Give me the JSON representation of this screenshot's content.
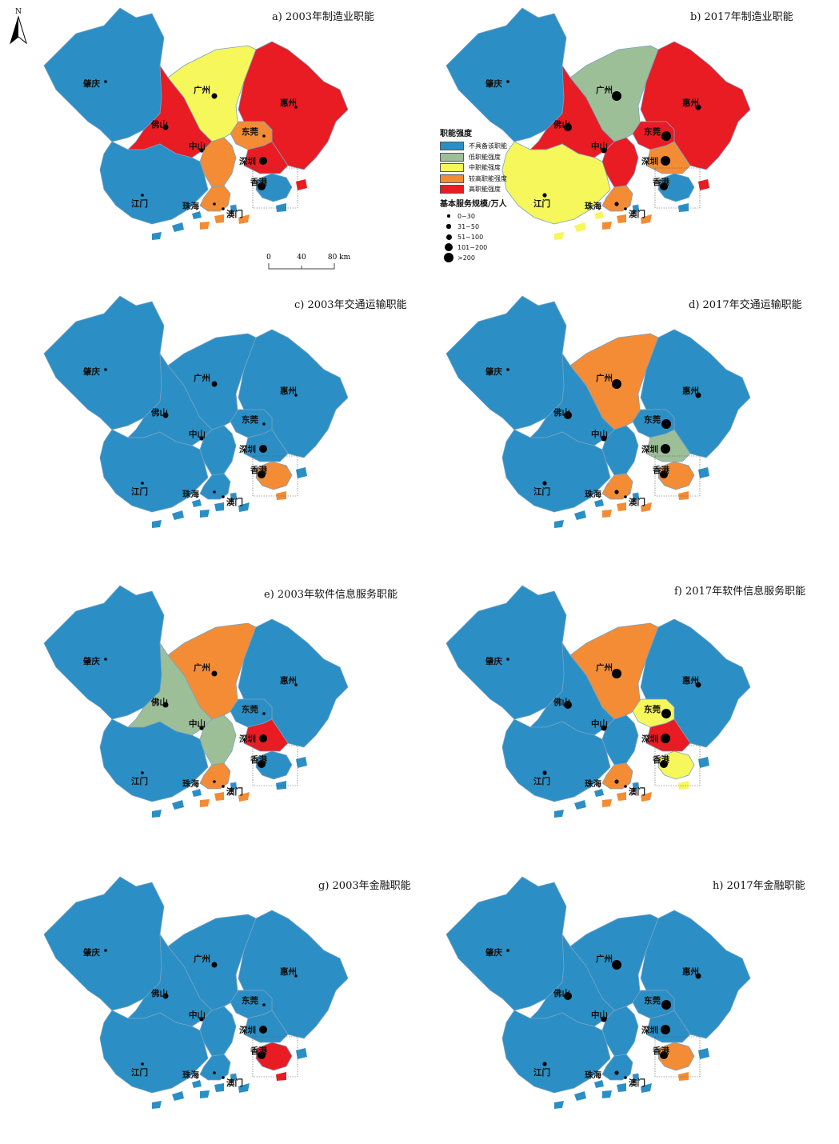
{
  "legend": {
    "title": "职能强度",
    "classes": [
      {
        "label": "不具备该职能",
        "color": "#2b8fc5"
      },
      {
        "label": "低职能强度",
        "color": "#9dbf97"
      },
      {
        "label": "中职能强度",
        "color": "#f6f75b"
      },
      {
        "label": "较高职能强度",
        "color": "#f38c35"
      },
      {
        "label": "高职能强度",
        "color": "#e81c22"
      }
    ],
    "size_title": "基本服务规模/万人",
    "sizes": [
      {
        "label": "0~30",
        "level": 1
      },
      {
        "label": "31~50",
        "level": 2
      },
      {
        "label": "51~100",
        "level": 3
      },
      {
        "label": "101~200",
        "level": 4
      },
      {
        "label": ">200",
        "level": 5
      }
    ]
  },
  "north_label": "N",
  "scale_bar": {
    "ticks": [
      "0",
      "40",
      "80 km"
    ]
  },
  "cities": [
    "zhaoqing",
    "guangzhou",
    "huizhou",
    "foshan",
    "dongguan",
    "shenzhen",
    "zhongshan",
    "jiangmen",
    "zhuhai",
    "macau",
    "hongkong"
  ],
  "city_names": {
    "zhaoqing": "肇庆",
    "guangzhou": "广州",
    "huizhou": "惠州",
    "foshan": "佛山",
    "dongguan": "东莞",
    "shenzhen": "深圳",
    "zhongshan": "中山",
    "jiangmen": "江门",
    "zhuhai": "珠海",
    "macau": "澳门",
    "hongkong": "香港"
  },
  "panels": [
    {
      "title": "a) 2003年制造业职能",
      "classes": {
        "zhaoqing": 0,
        "guangzhou": 2,
        "huizhou": 4,
        "foshan": 4,
        "dongguan": 3,
        "shenzhen": 4,
        "zhongshan": 3,
        "jiangmen": 0,
        "zhuhai": 3,
        "macau": 0,
        "hongkong": 0
      },
      "sizes": {
        "zhaoqing": 1,
        "guangzhou": 3,
        "huizhou": 1,
        "foshan": 3,
        "dongguan": 1,
        "shenzhen": 4,
        "zhongshan": 2,
        "jiangmen": 1,
        "zhuhai": 1,
        "macau": 1,
        "hongkong": 4
      }
    },
    {
      "title": "b) 2017年制造业职能",
      "classes": {
        "zhaoqing": 0,
        "guangzhou": 1,
        "huizhou": 4,
        "foshan": 4,
        "dongguan": 4,
        "shenzhen": 3,
        "zhongshan": 4,
        "jiangmen": 2,
        "zhuhai": 3,
        "macau": 0,
        "hongkong": 0
      },
      "sizes": {
        "zhaoqing": 1,
        "guangzhou": 5,
        "huizhou": 3,
        "foshan": 4,
        "dongguan": 5,
        "shenzhen": 5,
        "zhongshan": 3,
        "jiangmen": 2,
        "zhuhai": 2,
        "macau": 1,
        "hongkong": 4
      }
    },
    {
      "title": "c) 2003年交通运输职能",
      "classes": {
        "zhaoqing": 0,
        "guangzhou": 0,
        "huizhou": 0,
        "foshan": 0,
        "dongguan": 0,
        "shenzhen": 0,
        "zhongshan": 0,
        "jiangmen": 0,
        "zhuhai": 0,
        "macau": 0,
        "hongkong": 3
      },
      "sizes": {
        "zhaoqing": 1,
        "guangzhou": 3,
        "huizhou": 1,
        "foshan": 3,
        "dongguan": 1,
        "shenzhen": 4,
        "zhongshan": 2,
        "jiangmen": 1,
        "zhuhai": 1,
        "macau": 1,
        "hongkong": 4
      }
    },
    {
      "title": "d) 2017年交通运输职能",
      "classes": {
        "zhaoqing": 0,
        "guangzhou": 3,
        "huizhou": 0,
        "foshan": 0,
        "dongguan": 0,
        "shenzhen": 1,
        "zhongshan": 0,
        "jiangmen": 0,
        "zhuhai": 3,
        "macau": 0,
        "hongkong": 3
      },
      "sizes": {
        "zhaoqing": 1,
        "guangzhou": 5,
        "huizhou": 3,
        "foshan": 4,
        "dongguan": 5,
        "shenzhen": 5,
        "zhongshan": 3,
        "jiangmen": 2,
        "zhuhai": 2,
        "macau": 1,
        "hongkong": 4
      }
    },
    {
      "title": "e) 2003年软件信息服务职能",
      "classes": {
        "zhaoqing": 0,
        "guangzhou": 3,
        "huizhou": 0,
        "foshan": 1,
        "dongguan": 0,
        "shenzhen": 4,
        "zhongshan": 1,
        "jiangmen": 0,
        "zhuhai": 3,
        "macau": 0,
        "hongkong": 0
      },
      "sizes": {
        "zhaoqing": 1,
        "guangzhou": 3,
        "huizhou": 1,
        "foshan": 3,
        "dongguan": 1,
        "shenzhen": 4,
        "zhongshan": 2,
        "jiangmen": 1,
        "zhuhai": 1,
        "macau": 1,
        "hongkong": 4
      }
    },
    {
      "title": "f) 2017年软件信息服务职能",
      "classes": {
        "zhaoqing": 0,
        "guangzhou": 3,
        "huizhou": 0,
        "foshan": 0,
        "dongguan": 2,
        "shenzhen": 4,
        "zhongshan": 0,
        "jiangmen": 0,
        "zhuhai": 3,
        "macau": 0,
        "hongkong": 2
      },
      "sizes": {
        "zhaoqing": 1,
        "guangzhou": 5,
        "huizhou": 3,
        "foshan": 4,
        "dongguan": 5,
        "shenzhen": 5,
        "zhongshan": 3,
        "jiangmen": 2,
        "zhuhai": 2,
        "macau": 1,
        "hongkong": 4
      }
    },
    {
      "title": "g) 2003年金融职能",
      "classes": {
        "zhaoqing": 0,
        "guangzhou": 0,
        "huizhou": 0,
        "foshan": 0,
        "dongguan": 0,
        "shenzhen": 0,
        "zhongshan": 0,
        "jiangmen": 0,
        "zhuhai": 0,
        "macau": 0,
        "hongkong": 4
      },
      "sizes": {
        "zhaoqing": 1,
        "guangzhou": 3,
        "huizhou": 1,
        "foshan": 3,
        "dongguan": 1,
        "shenzhen": 4,
        "zhongshan": 2,
        "jiangmen": 1,
        "zhuhai": 1,
        "macau": 1,
        "hongkong": 4
      }
    },
    {
      "title": "h) 2017年金融职能",
      "classes": {
        "zhaoqing": 0,
        "guangzhou": 0,
        "huizhou": 0,
        "foshan": 0,
        "dongguan": 0,
        "shenzhen": 0,
        "zhongshan": 0,
        "jiangmen": 0,
        "zhuhai": 0,
        "macau": 0,
        "hongkong": 3
      },
      "sizes": {
        "zhaoqing": 1,
        "guangzhou": 5,
        "huizhou": 3,
        "foshan": 4,
        "dongguan": 5,
        "shenzhen": 5,
        "zhongshan": 3,
        "jiangmen": 2,
        "zhuhai": 2,
        "macau": 1,
        "hongkong": 4
      }
    }
  ]
}
